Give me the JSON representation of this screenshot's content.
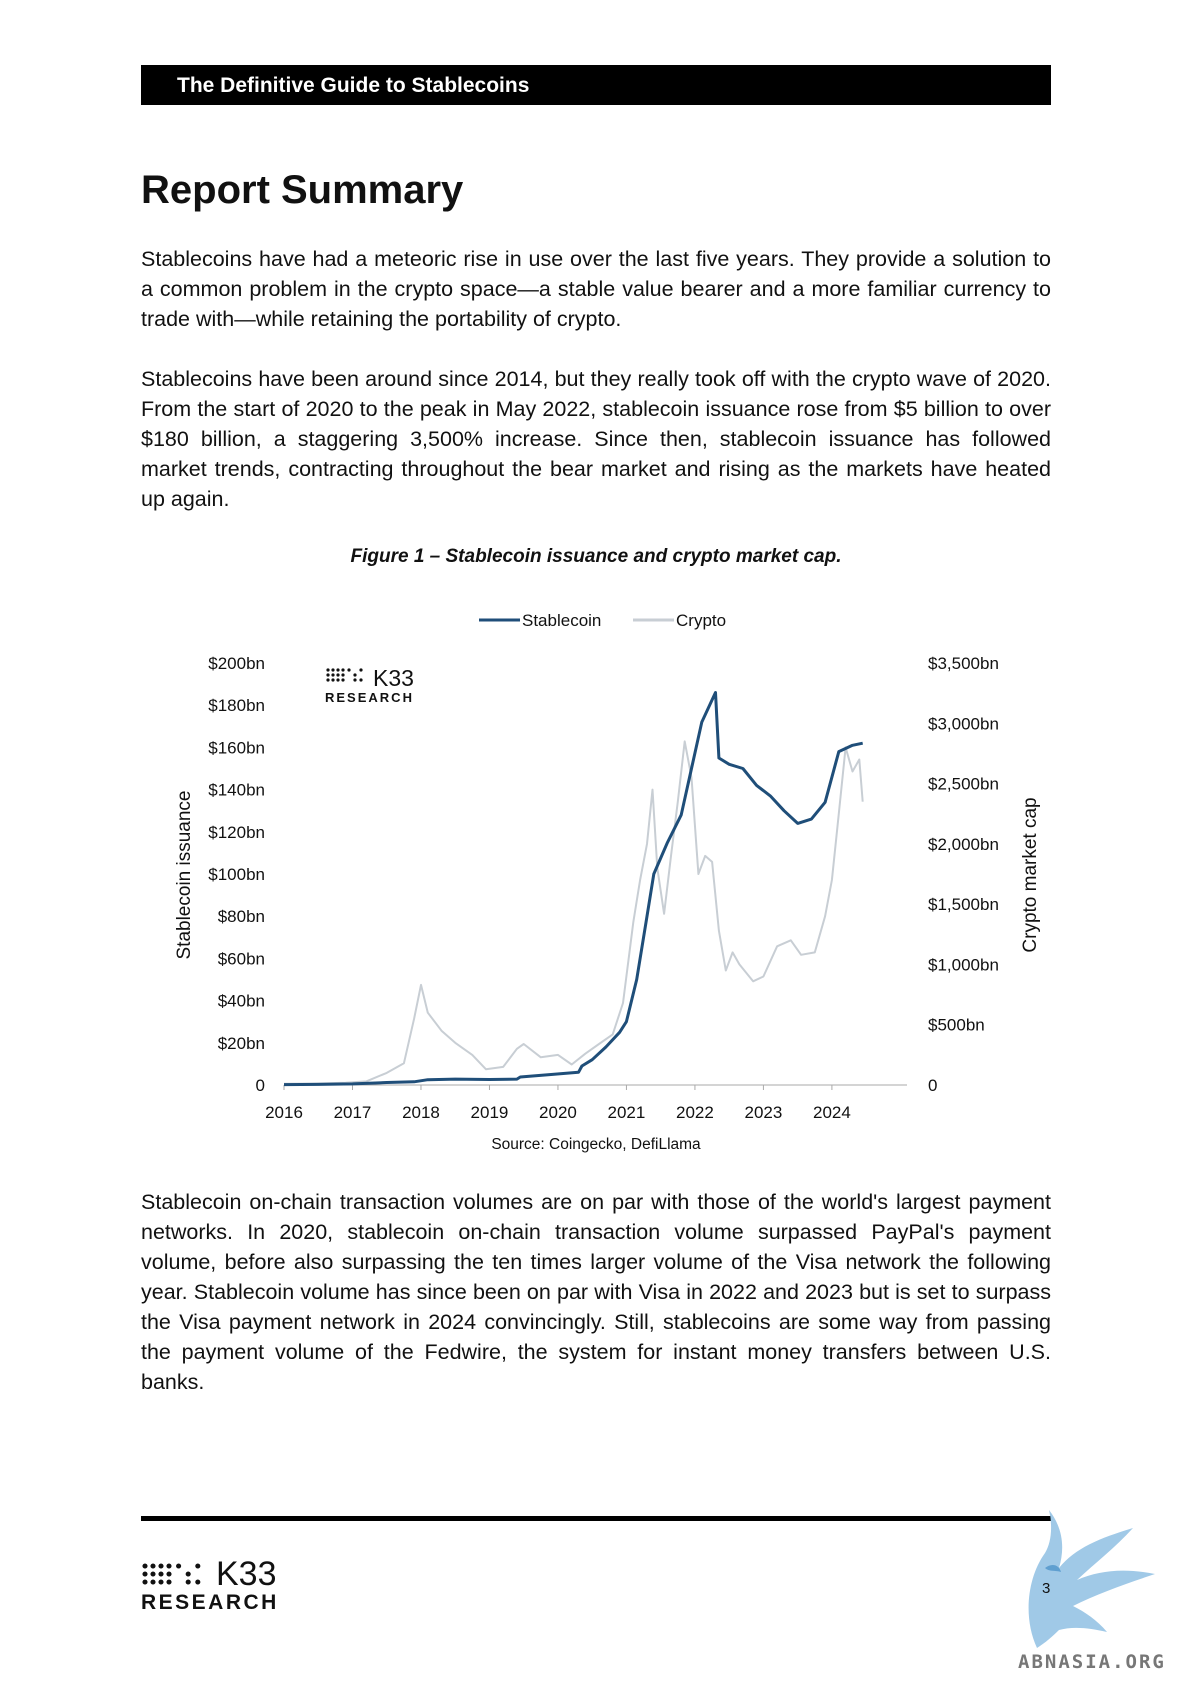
{
  "header": {
    "title": "The Definitive Guide to Stablecoins"
  },
  "page_title": "Report Summary",
  "paragraphs": [
    "Stablecoins have had a meteoric rise in use over the last five years. They provide a solution to a common problem in the crypto space—a stable value bearer and a more familiar currency to trade with—while retaining the portability of crypto.",
    "Stablecoins have been around since 2014, but they really took off with the crypto wave of 2020. From the start of 2020 to the peak in May 2022, stablecoin issuance rose from $5 billion to over $180 billion, a staggering 3,500% increase. Since then, stablecoin issuance has followed market trends, contracting throughout the bear market and rising as the markets have heated up again.",
    "Stablecoin on-chain transaction volumes are on par with those of the world's largest payment networks. In 2020, stablecoin on-chain transaction volume surpassed PayPal's payment volume, before also surpassing the ten times larger volume of the Visa network the following year. Stablecoin volume has since been on par with Visa in 2022 and 2023 but is set to surpass the Visa payment network in 2024 convincingly. Still, stablecoins are some way from passing the payment volume of the Fedwire, the system for instant money transfers between U.S. banks."
  ],
  "figure": {
    "caption": "Figure 1 – Stablecoin issuance and crypto market cap.",
    "source": "Source: Coingecko, DefiLlama",
    "logo": {
      "name": "K33",
      "sub": "RESEARCH"
    }
  },
  "chart_data": {
    "type": "line",
    "legend": {
      "placement": "top-center",
      "entries": [
        "Stablecoin",
        "Crypto"
      ]
    },
    "x_ticks": [
      "2016",
      "2017",
      "2018",
      "2019",
      "2020",
      "2021",
      "2022",
      "2023",
      "2024"
    ],
    "xlim": [
      2016.0,
      2024.6
    ],
    "y_left": {
      "label": "Stablecoin issuance",
      "range": [
        0,
        200
      ],
      "ticks": [
        "0",
        "$20bn",
        "$40bn",
        "$60bn",
        "$80bn",
        "$100bn",
        "$120bn",
        "$140bn",
        "$160bn",
        "$180bn",
        "$200bn"
      ]
    },
    "y_right": {
      "label": "Crypto market cap",
      "range": [
        0,
        3500
      ],
      "ticks": [
        "0",
        "$500bn",
        "$1,000bn",
        "$1,500bn",
        "$2,000bn",
        "$2,500bn",
        "$3,000bn",
        "$3,500bn"
      ]
    },
    "series": [
      {
        "name": "Stablecoin",
        "color": "#1f4e79",
        "axis": "left",
        "points": [
          [
            2016.0,
            0.2
          ],
          [
            2016.5,
            0.3
          ],
          [
            2017.0,
            0.5
          ],
          [
            2017.5,
            1.2
          ],
          [
            2017.9,
            1.5
          ],
          [
            2018.1,
            2.5
          ],
          [
            2018.5,
            2.8
          ],
          [
            2019.0,
            2.6
          ],
          [
            2019.4,
            2.8
          ],
          [
            2019.45,
            3.8
          ],
          [
            2019.9,
            5
          ],
          [
            2020.3,
            6
          ],
          [
            2020.35,
            9
          ],
          [
            2020.5,
            12
          ],
          [
            2020.7,
            18
          ],
          [
            2020.9,
            25
          ],
          [
            2021.0,
            30
          ],
          [
            2021.15,
            50
          ],
          [
            2021.3,
            80
          ],
          [
            2021.4,
            100
          ],
          [
            2021.6,
            115
          ],
          [
            2021.8,
            128
          ],
          [
            2021.95,
            150
          ],
          [
            2022.1,
            172
          ],
          [
            2022.3,
            186
          ],
          [
            2022.35,
            155
          ],
          [
            2022.5,
            152
          ],
          [
            2022.7,
            150
          ],
          [
            2022.9,
            142
          ],
          [
            2023.1,
            137
          ],
          [
            2023.3,
            130
          ],
          [
            2023.5,
            124
          ],
          [
            2023.7,
            126
          ],
          [
            2023.9,
            134
          ],
          [
            2024.1,
            158
          ],
          [
            2024.3,
            161
          ],
          [
            2024.45,
            162
          ]
        ]
      },
      {
        "name": "Crypto",
        "color": "#c8ced4",
        "axis": "right",
        "points": [
          [
            2016.0,
            10
          ],
          [
            2016.4,
            12
          ],
          [
            2016.9,
            18
          ],
          [
            2017.2,
            30
          ],
          [
            2017.5,
            100
          ],
          [
            2017.75,
            180
          ],
          [
            2017.9,
            550
          ],
          [
            2018.0,
            830
          ],
          [
            2018.1,
            600
          ],
          [
            2018.3,
            450
          ],
          [
            2018.5,
            350
          ],
          [
            2018.75,
            250
          ],
          [
            2018.95,
            130
          ],
          [
            2019.2,
            150
          ],
          [
            2019.4,
            300
          ],
          [
            2019.5,
            340
          ],
          [
            2019.75,
            230
          ],
          [
            2020.0,
            250
          ],
          [
            2020.2,
            170
          ],
          [
            2020.4,
            260
          ],
          [
            2020.6,
            340
          ],
          [
            2020.8,
            420
          ],
          [
            2020.95,
            680
          ],
          [
            2021.1,
            1350
          ],
          [
            2021.2,
            1700
          ],
          [
            2021.3,
            2000
          ],
          [
            2021.38,
            2450
          ],
          [
            2021.45,
            1800
          ],
          [
            2021.55,
            1420
          ],
          [
            2021.65,
            1900
          ],
          [
            2021.75,
            2350
          ],
          [
            2021.85,
            2850
          ],
          [
            2021.95,
            2550
          ],
          [
            2022.05,
            1750
          ],
          [
            2022.15,
            1900
          ],
          [
            2022.25,
            1850
          ],
          [
            2022.35,
            1280
          ],
          [
            2022.45,
            950
          ],
          [
            2022.55,
            1100
          ],
          [
            2022.65,
            1000
          ],
          [
            2022.85,
            860
          ],
          [
            2023.0,
            900
          ],
          [
            2023.2,
            1150
          ],
          [
            2023.4,
            1200
          ],
          [
            2023.55,
            1080
          ],
          [
            2023.75,
            1100
          ],
          [
            2023.9,
            1400
          ],
          [
            2024.0,
            1700
          ],
          [
            2024.1,
            2250
          ],
          [
            2024.2,
            2800
          ],
          [
            2024.3,
            2600
          ],
          [
            2024.4,
            2700
          ],
          [
            2024.45,
            2350
          ]
        ]
      }
    ]
  },
  "footer": {
    "logo_name": "K33",
    "logo_sub": "RESEARCH",
    "page_number": "3",
    "watermark": "ABNASIA.ORG"
  }
}
